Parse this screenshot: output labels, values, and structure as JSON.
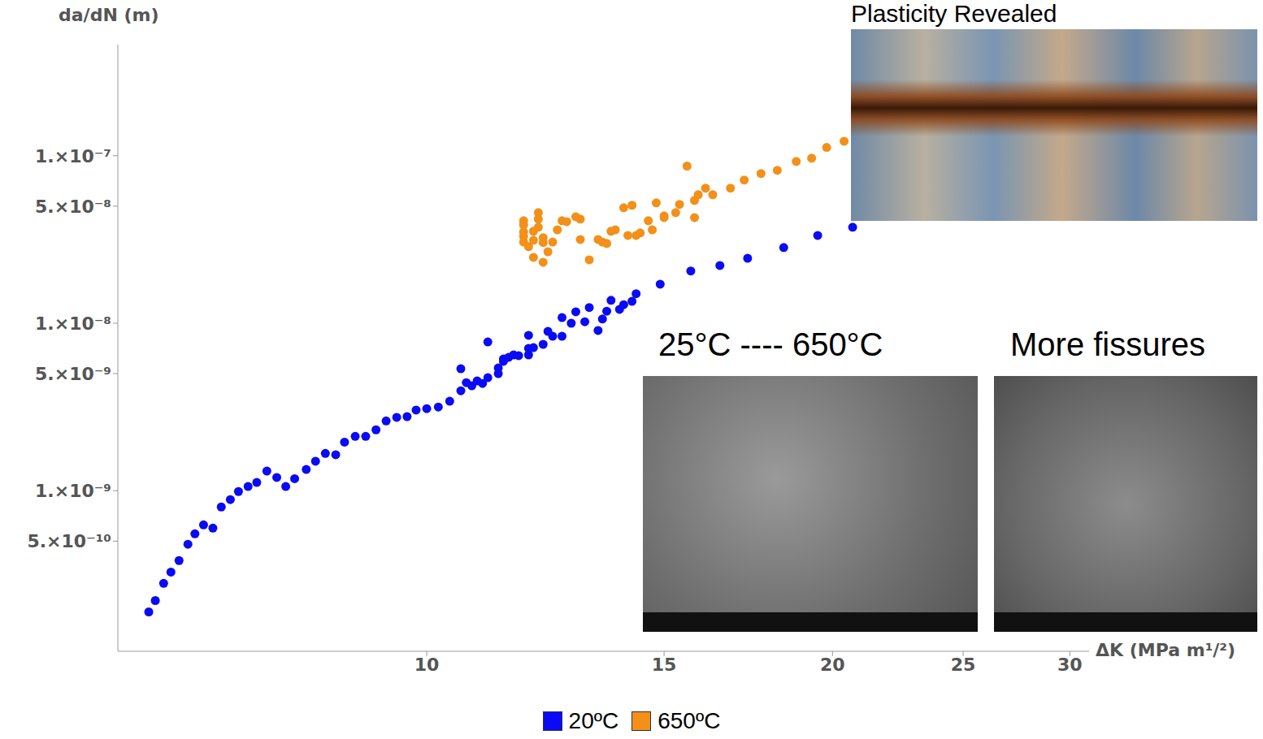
{
  "chart_data": {
    "type": "scatter",
    "x_label": "ΔK (MPa m¹/²)",
    "y_label": "da/dN (m)",
    "log": true,
    "grid": false,
    "legend": "bottom",
    "xlim": [
      5.9,
      31
    ],
    "ylim": [
      1.1e-10,
      4.6e-07
    ],
    "xticks": [
      10,
      15,
      20,
      25,
      30
    ],
    "yticks": [
      {
        "value": 1e-07,
        "label": "1.×10⁻⁷"
      },
      {
        "value": 5e-08,
        "label": "5.×10⁻⁸"
      },
      {
        "value": 1e-08,
        "label": "1.×10⁻⁸"
      },
      {
        "value": 5e-09,
        "label": "5.×10⁻⁹"
      },
      {
        "value": 1e-09,
        "label": "1.×10⁻⁹"
      },
      {
        "value": 5e-10,
        "label": "5.×10⁻¹⁰"
      }
    ],
    "annotations": [
      "Plasticity Revealed",
      "25°C ---- 650°C",
      "More fissures"
    ],
    "series": [
      {
        "name": "20ºC",
        "color": "#0a0af5",
        "marker": "circle",
        "x": [
          6.22,
          6.29,
          6.38,
          6.46,
          6.55,
          6.65,
          6.73,
          6.83,
          6.94,
          7.04,
          7.15,
          7.25,
          7.37,
          7.48,
          7.61,
          7.74,
          7.86,
          7.98,
          8.14,
          8.27,
          8.41,
          8.56,
          8.69,
          8.85,
          9.01,
          9.17,
          9.33,
          9.5,
          9.67,
          9.82,
          10.0,
          10.2,
          10.4,
          10.6,
          10.6,
          10.7,
          10.8,
          10.9,
          11.0,
          11.1,
          11.1,
          11.3,
          11.3,
          11.4,
          11.4,
          11.5,
          11.6,
          11.7,
          11.9,
          11.9,
          11.9,
          12.0,
          12.2,
          12.3,
          12.4,
          12.6,
          12.6,
          12.8,
          12.9,
          13.1,
          13.2,
          13.4,
          13.5,
          13.6,
          13.7,
          13.9,
          14.0,
          14.2,
          14.3,
          14.9,
          15.7,
          16.5,
          17.3,
          18.4,
          19.5,
          20.7
        ],
        "values": [
          1.89e-10,
          2.21e-10,
          2.8e-10,
          3.27e-10,
          3.83e-10,
          4.79e-10,
          5.53e-10,
          6.25e-10,
          5.98e-10,
          8e-10,
          8.85e-10,
          9.89e-10,
          1.06e-09,
          1.12e-09,
          1.31e-09,
          1.2e-09,
          1.06e-09,
          1.18e-09,
          1.34e-09,
          1.5e-09,
          1.67e-09,
          1.64e-09,
          1.95e-09,
          2.11e-09,
          2.11e-09,
          2.31e-09,
          2.61e-09,
          2.74e-09,
          2.77e-09,
          3.03e-09,
          3.09e-09,
          3.16e-09,
          3.42e-09,
          3.95e-09,
          5.35e-09,
          4.42e-09,
          4.23e-09,
          4.52e-09,
          4.37e-09,
          4.73e-09,
          7.73e-09,
          5.41e-09,
          5e-09,
          6.11e-09,
          5.92e-09,
          6.25e-09,
          6.47e-09,
          6.4e-09,
          7.08e-09,
          8.46e-09,
          6.47e-09,
          7.15e-09,
          7.48e-09,
          8.94e-09,
          8.36e-09,
          8.36e-09,
          1.08e-08,
          1e-08,
          1.17e-08,
          1.02e-08,
          1.24e-08,
          9.05e-09,
          1.06e-08,
          1.18e-08,
          1.37e-08,
          1.21e-08,
          1.29e-08,
          1.35e-08,
          1.5e-08,
          1.71e-08,
          2.05e-08,
          2.21e-08,
          2.44e-08,
          2.83e-08,
          3.34e-08,
          3.74e-08
        ]
      },
      {
        "name": "650ºC",
        "color": "#f39019",
        "marker": "circle",
        "x": [
          11.8,
          11.8,
          11.8,
          11.8,
          11.8,
          11.9,
          12.0,
          12.0,
          12.0,
          12.1,
          12.1,
          12.1,
          12.2,
          12.2,
          12.2,
          12.3,
          12.4,
          12.5,
          12.6,
          12.7,
          12.9,
          13.0,
          13.0,
          13.2,
          13.4,
          13.5,
          13.6,
          13.7,
          13.8,
          14.0,
          14.1,
          14.2,
          14.3,
          14.4,
          14.6,
          14.7,
          14.8,
          15.0,
          15.0,
          15.3,
          15.4,
          15.6,
          15.8,
          15.8,
          15.9,
          16.1,
          16.3,
          16.8,
          17.2,
          17.7,
          18.2,
          18.8,
          19.3,
          19.8,
          20.4
        ],
        "values": [
          3.5e-08,
          4.09e-08,
          3.86e-08,
          3.3e-08,
          3.05e-08,
          2.86e-08,
          2.47e-08,
          3.13e-08,
          3.54e-08,
          4.57e-08,
          3.74e-08,
          4.18e-08,
          3.03e-08,
          3.24e-08,
          2.31e-08,
          2.67e-08,
          3.05e-08,
          3.61e-08,
          4.09e-08,
          4.04e-08,
          4.32e-08,
          4.18e-08,
          3.16e-08,
          2.39e-08,
          3.16e-08,
          3.05e-08,
          2.99e-08,
          3.54e-08,
          3.61e-08,
          4.89e-08,
          3.34e-08,
          5.06e-08,
          3.34e-08,
          3.46e-08,
          4.09e-08,
          3.61e-08,
          5.23e-08,
          4.37e-08,
          4.27e-08,
          4.57e-08,
          5.12e-08,
          8.67e-08,
          4.27e-08,
          5.41e-08,
          5.85e-08,
          6.4e-08,
          5.85e-08,
          6.4e-08,
          7.16e-08,
          7.83e-08,
          8.18e-08,
          9.24e-08,
          9.66e-08,
          1.12e-07,
          1.22e-07
        ]
      }
    ]
  }
}
